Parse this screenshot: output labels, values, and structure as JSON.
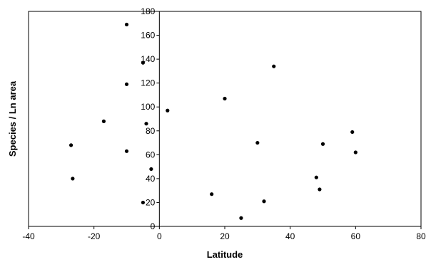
{
  "chart_data": {
    "type": "scatter",
    "title": "",
    "xlabel": "Latitude",
    "ylabel": "Species / Ln area",
    "xlim": [
      -40,
      80
    ],
    "ylim": [
      0,
      180
    ],
    "xticks": [
      -40,
      -20,
      0,
      20,
      40,
      60,
      80
    ],
    "yticks": [
      0,
      20,
      40,
      60,
      80,
      100,
      120,
      140,
      160,
      180
    ],
    "grid": false,
    "legend": "none",
    "marker_color": "#000000",
    "series": [
      {
        "x": [
          -27,
          -26.5,
          -17,
          -10,
          -10,
          -10,
          -5,
          -4,
          -5,
          -2.5,
          2.5,
          16,
          20,
          25,
          30,
          32,
          35,
          48,
          49,
          50,
          59,
          60
        ],
        "y": [
          68,
          40,
          88,
          169,
          119,
          63,
          137,
          86,
          20,
          48,
          97,
          27,
          107,
          7,
          70,
          21,
          134,
          41,
          31,
          69,
          79,
          62
        ]
      }
    ]
  }
}
